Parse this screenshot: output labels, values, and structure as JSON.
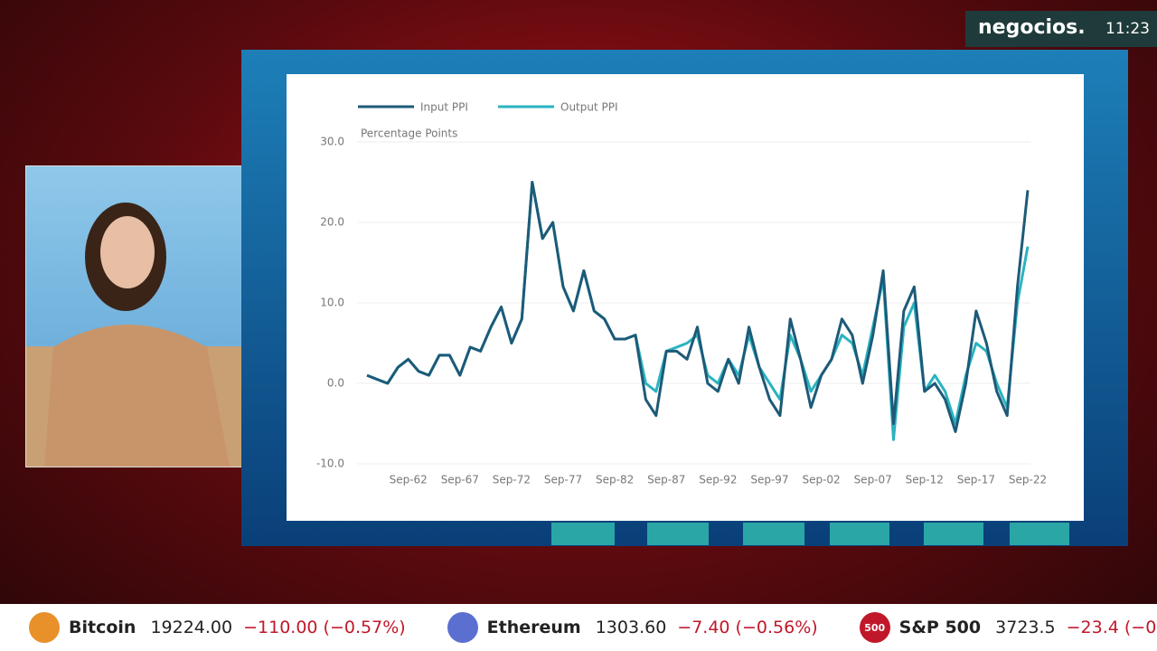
{
  "brand": {
    "name": "negocios.",
    "time": "11:23"
  },
  "chart_data": {
    "type": "line",
    "legend": [
      "Input PPI",
      "Output PPI"
    ],
    "y_axis_title": "Percentage Points",
    "categories": [
      null,
      null,
      null,
      null,
      "Sep-62",
      null,
      null,
      null,
      null,
      "Sep-67",
      null,
      null,
      null,
      null,
      "Sep-72",
      null,
      null,
      null,
      null,
      "Sep-77",
      null,
      null,
      null,
      null,
      "Sep-82",
      null,
      null,
      null,
      null,
      "Sep-87",
      null,
      null,
      null,
      null,
      "Sep-92",
      null,
      null,
      null,
      null,
      "Sep-97",
      null,
      null,
      null,
      null,
      "Sep-02",
      null,
      null,
      null,
      null,
      "Sep-07",
      null,
      null,
      null,
      null,
      "Sep-12",
      null,
      null,
      null,
      null,
      "Sep-17",
      null,
      null,
      null,
      null,
      "Sep-22"
    ],
    "series": [
      {
        "name": "Input PPI",
        "color": "#1d5a78",
        "values": [
          1,
          0.5,
          0,
          2,
          3,
          1.5,
          1,
          3.5,
          3.5,
          1,
          4.5,
          4,
          7,
          9.5,
          5,
          8,
          25,
          18,
          20,
          12,
          9,
          14,
          9,
          8,
          5.5,
          5.5,
          6,
          -2,
          -4,
          4,
          4,
          3,
          7,
          0,
          -1,
          3,
          0,
          7,
          2,
          -2,
          -4,
          8,
          3,
          -3,
          1,
          3,
          8,
          6,
          0,
          6,
          14,
          -5,
          9,
          12,
          -1,
          0,
          -2,
          -6,
          0,
          9,
          5,
          -1,
          -4,
          12,
          24
        ]
      },
      {
        "name": "Output PPI",
        "color": "#2bb3c0",
        "values": [
          1,
          0.5,
          0,
          2,
          3,
          1.5,
          1,
          3.5,
          3.5,
          1,
          4.5,
          4,
          7,
          9.5,
          5,
          8,
          25,
          18,
          20,
          12,
          9,
          14,
          9,
          8,
          5.5,
          5.5,
          6,
          0,
          -1,
          4,
          4.5,
          5,
          6,
          1,
          0,
          3,
          1,
          6,
          2,
          0,
          -2,
          6,
          3,
          -1,
          1,
          3,
          6,
          5,
          1,
          7,
          13,
          -7,
          7,
          10,
          -1,
          1,
          -1,
          -5,
          1,
          5,
          4,
          0,
          -3,
          10,
          17
        ]
      }
    ],
    "ylim": [
      -10,
      30
    ],
    "yticks": [
      {
        "value": -10,
        "label": "-10.0"
      },
      {
        "value": 0,
        "label": "0.0"
      },
      {
        "value": 10,
        "label": "10.0"
      },
      {
        "value": 20,
        "label": "20.0"
      },
      {
        "value": 30,
        "label": "30.0"
      }
    ],
    "grid": true
  },
  "ticker": [
    {
      "icon": "",
      "name": "Bitcoin",
      "price": "19224.00",
      "change": "−110.00 (−0.57%)"
    },
    {
      "icon": "",
      "name": "Ethereum",
      "price": "1303.60",
      "change": "−7.40 (−0.56%)"
    },
    {
      "icon": "500",
      "name": "S&P 500",
      "price": "3723.5",
      "change": "−23.4 (−0,"
    }
  ]
}
